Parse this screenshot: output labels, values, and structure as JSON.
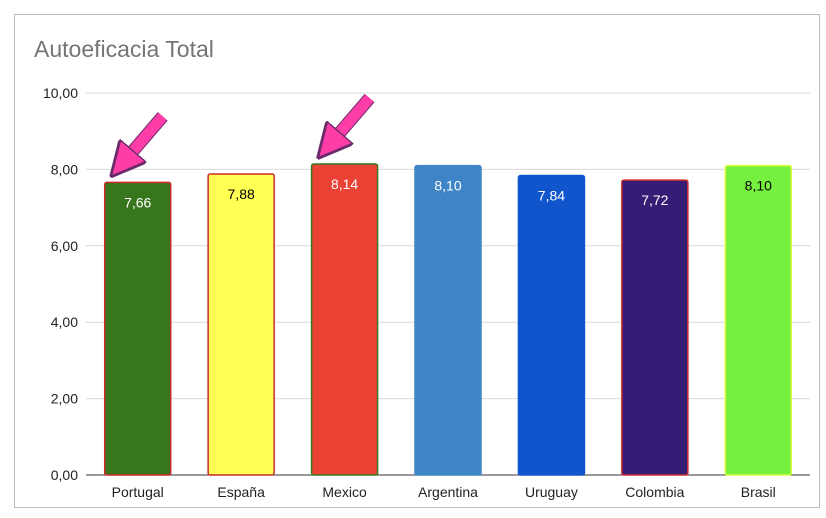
{
  "chart_data": {
    "type": "bar",
    "title": "Autoeficacia Total",
    "xlabel": "",
    "ylabel": "",
    "ylim": [
      0,
      10
    ],
    "yticks": [
      "0,00",
      "2,00",
      "4,00",
      "6,00",
      "8,00",
      "10,00"
    ],
    "grid": true,
    "legend": "none",
    "categories": [
      "Portugal",
      "España",
      "Mexico",
      "Argentina",
      "Uruguay",
      "Colombia",
      "Brasil"
    ],
    "values": [
      7.66,
      7.88,
      8.14,
      8.1,
      7.84,
      7.72,
      8.1
    ],
    "labels": [
      "7,66",
      "7,88",
      "8,14",
      "8,10",
      "7,84",
      "7,72",
      "8,10"
    ],
    "colors": [
      "#38761d",
      "#ffff54",
      "#ea4335",
      "#3d85c6",
      "#1155cc",
      "#351c75",
      "#76f03e"
    ],
    "border_colors": [
      "#cc2a2a",
      "#cc2a2a",
      "#38761d",
      "#3d85c6",
      "#1155cc",
      "#cc2a2a",
      "#d8ff3a"
    ],
    "label_colors": [
      "#ffffff",
      "#000000",
      "#ffffff",
      "#ffffff",
      "#ffffff",
      "#ffffff",
      "#000000"
    ],
    "annotations": [
      {
        "type": "arrow",
        "color": "#ff3da8",
        "target": "Portugal"
      },
      {
        "type": "arrow",
        "color": "#ff3da8",
        "target": "Mexico"
      }
    ]
  }
}
